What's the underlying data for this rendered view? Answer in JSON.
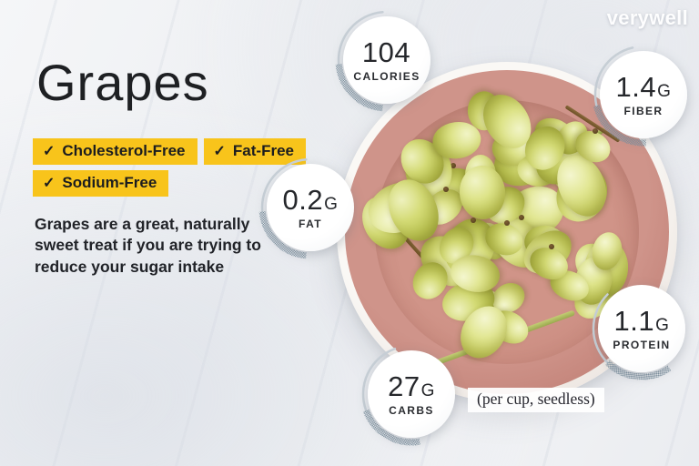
{
  "brand": {
    "logo": "verywell"
  },
  "header": {
    "title": "Grapes"
  },
  "icons": {
    "check": "✓"
  },
  "tags": [
    {
      "label": "Cholesterol-Free"
    },
    {
      "label": "Fat-Free"
    },
    {
      "label": "Sodium-Free"
    }
  ],
  "description": "Grapes are a great, naturally sweet treat if you are trying to reduce your sugar intake",
  "serving_note": "(per cup, seedless)",
  "nutrition_badges": [
    {
      "value": "104",
      "unit": "",
      "label": "CALORIES"
    },
    {
      "value": "1.4",
      "unit": "G",
      "label": "FIBER"
    },
    {
      "value": "0.2",
      "unit": "G",
      "label": "FAT"
    },
    {
      "value": "1.1",
      "unit": "G",
      "label": "PROTEIN"
    },
    {
      "value": "27",
      "unit": "G",
      "label": "CARBS"
    }
  ],
  "colors": {
    "accent_yellow": "#f8c41b",
    "badge_arc_hatch": "#7f93a1",
    "badge_arc_solid": "#c9d1d8",
    "bowl_pink": "#c4857b",
    "grape_green": "#c6ce66"
  }
}
